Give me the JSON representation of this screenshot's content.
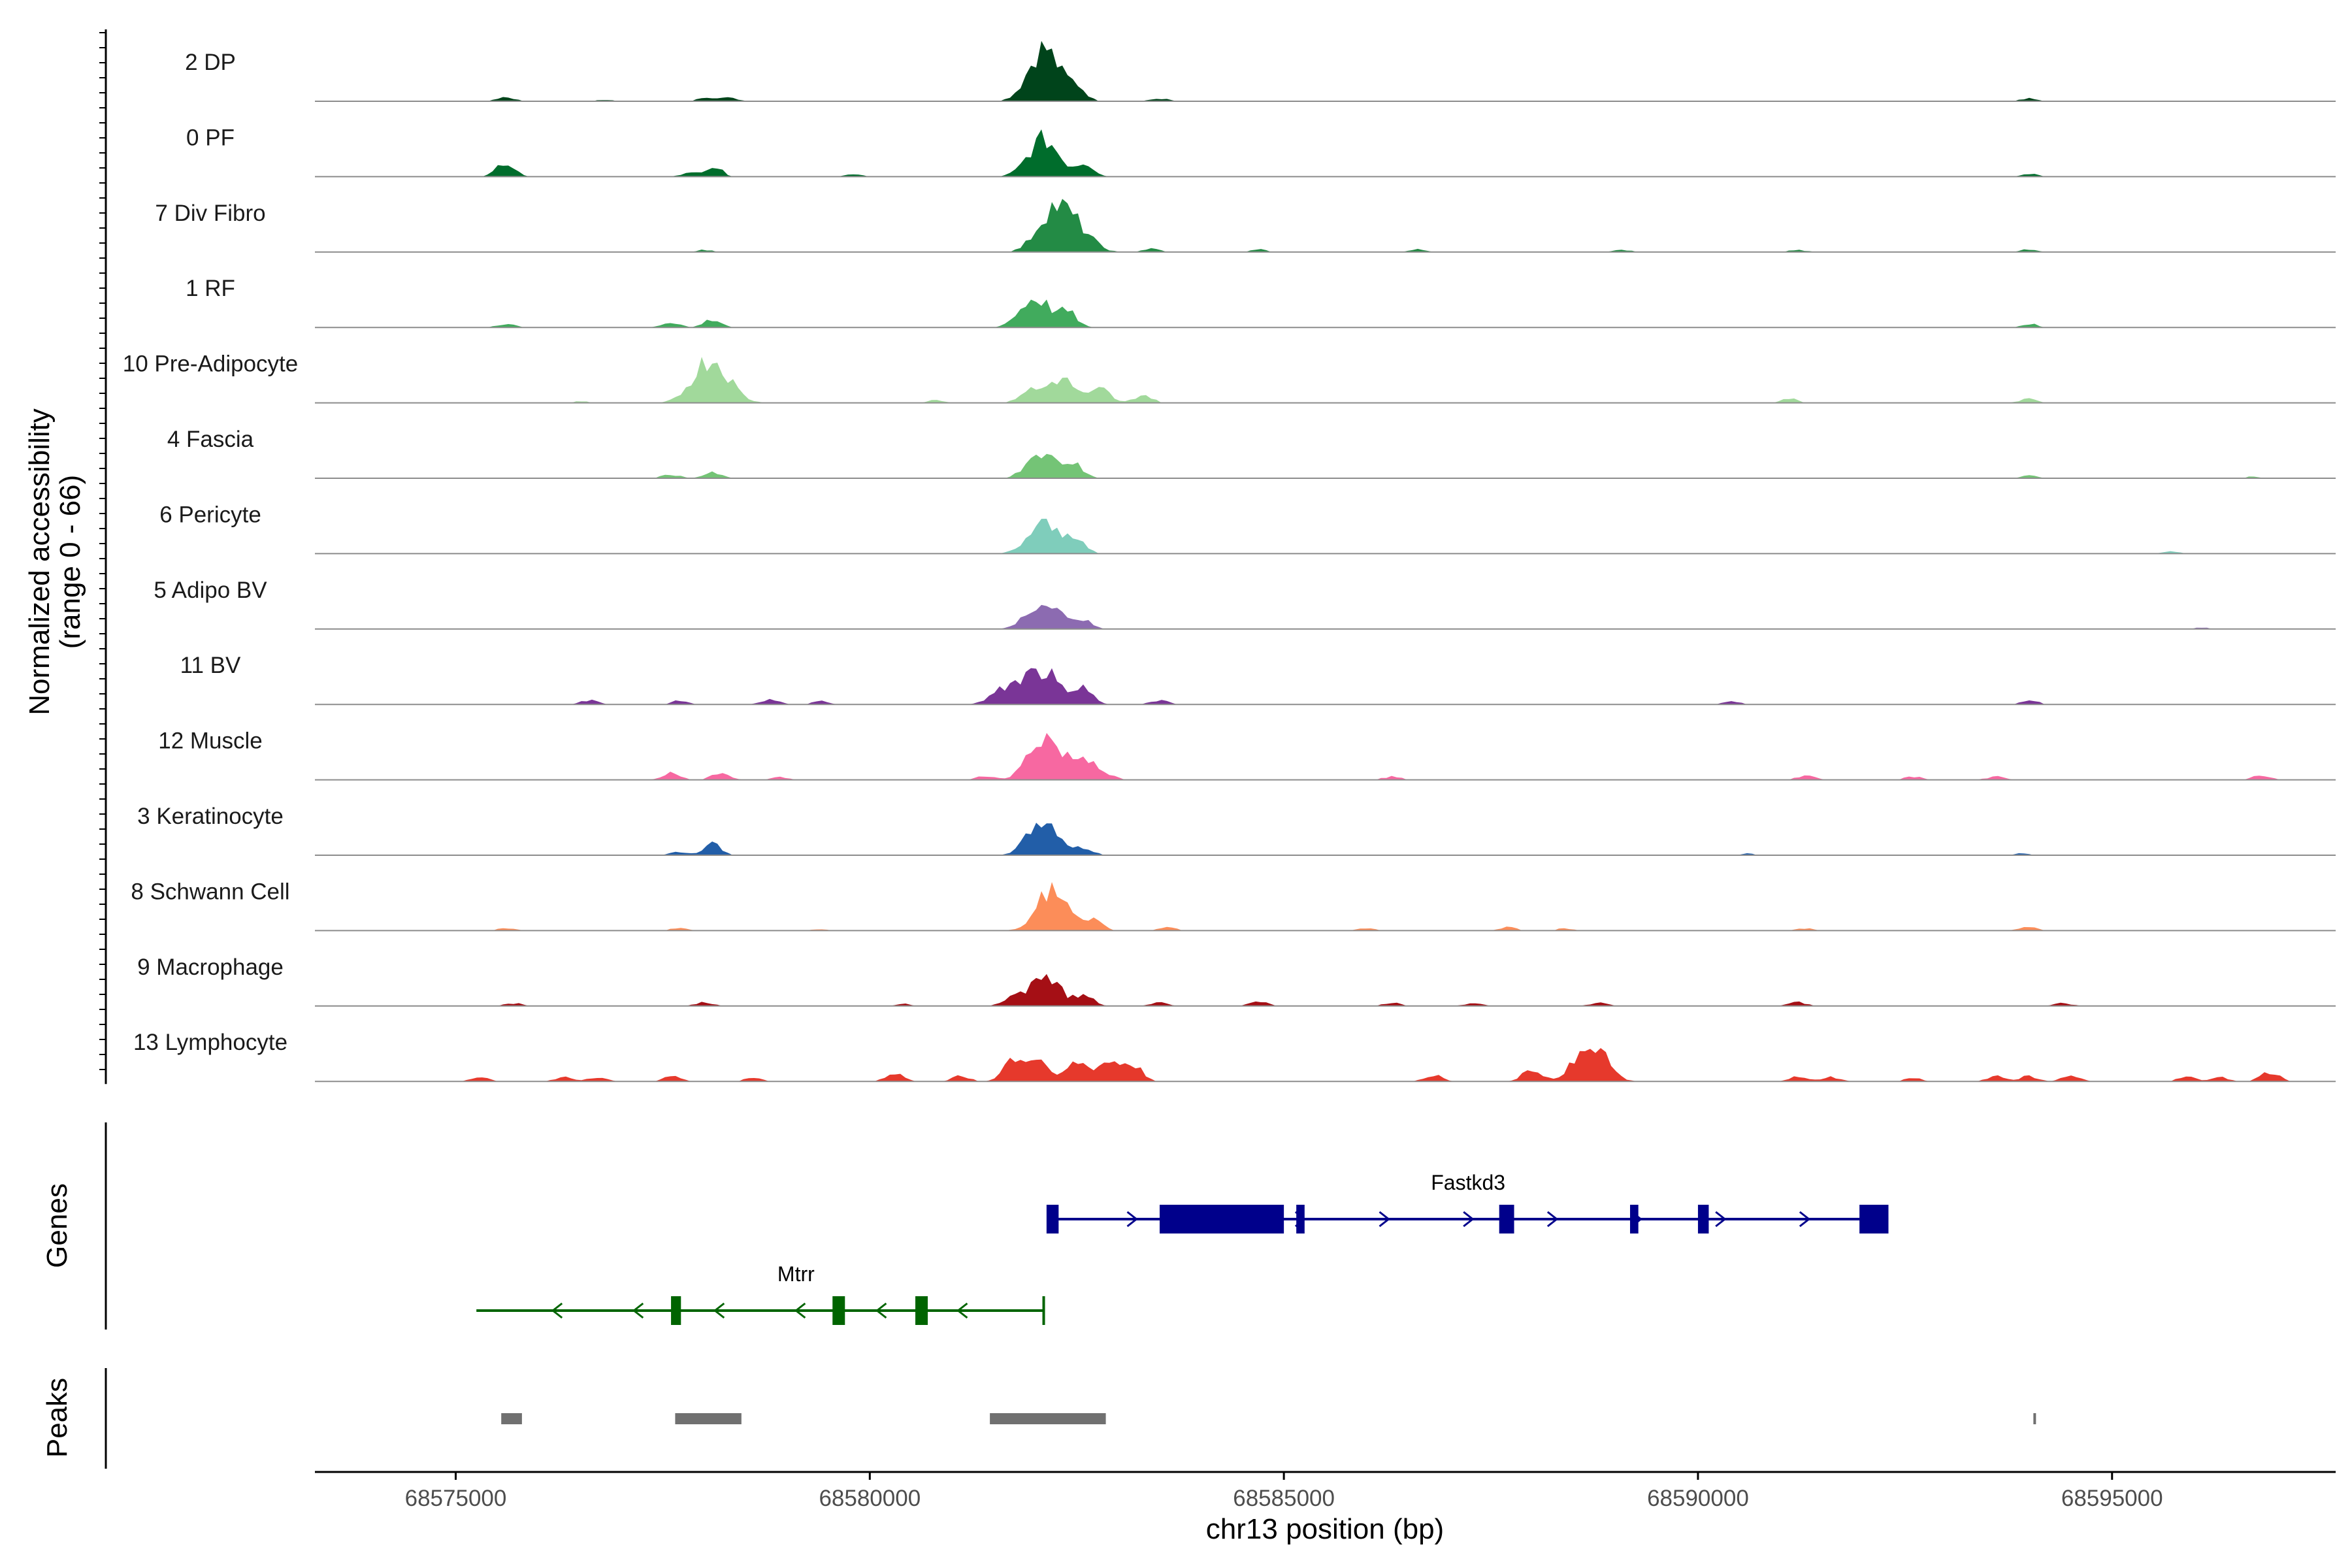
{
  "chart_data": {
    "type": "area",
    "title": "",
    "chrom": "chr13",
    "xlabel": "chr13 position (bp)",
    "ylabel": "Normalized accessibility",
    "ylabel_range": "(range 0 - 66)",
    "xlim": [
      68573300,
      68597700
    ],
    "x_ticks": [
      68575000,
      68580000,
      68585000,
      68590000,
      68595000
    ],
    "x_tick_labels": [
      "68575000",
      "68580000",
      "68585000",
      "68590000",
      "68595000"
    ],
    "y_range": [
      0,
      66
    ],
    "tracks": [
      {
        "name": "2 DP",
        "color": "#00441b",
        "peaks": [
          [
            68575600,
            0.08
          ],
          [
            68576800,
            0.03
          ],
          [
            68578000,
            0.05
          ],
          [
            68578300,
            0.07
          ],
          [
            68582100,
            1.0
          ],
          [
            68582500,
            0.25
          ],
          [
            68583500,
            0.05
          ],
          [
            68594000,
            0.06
          ]
        ]
      },
      {
        "name": "0 PF",
        "color": "#006d2c",
        "peaks": [
          [
            68575600,
            0.25
          ],
          [
            68577800,
            0.06
          ],
          [
            68578100,
            0.2
          ],
          [
            68579800,
            0.04
          ],
          [
            68582100,
            0.7
          ],
          [
            68582600,
            0.25
          ],
          [
            68594000,
            0.05
          ]
        ]
      },
      {
        "name": "7 Div Fibro",
        "color": "#238b45",
        "peaks": [
          [
            68578000,
            0.04
          ],
          [
            68582200,
            0.75
          ],
          [
            68582500,
            0.4
          ],
          [
            68583400,
            0.06
          ],
          [
            68584700,
            0.05
          ],
          [
            68586600,
            0.05
          ],
          [
            68589100,
            0.04
          ],
          [
            68591200,
            0.04
          ],
          [
            68594000,
            0.05
          ]
        ]
      },
      {
        "name": "1 RF",
        "color": "#41ab5d",
        "peaks": [
          [
            68575600,
            0.07
          ],
          [
            68577600,
            0.1
          ],
          [
            68578100,
            0.15
          ],
          [
            68582000,
            0.55
          ],
          [
            68582400,
            0.25
          ],
          [
            68594000,
            0.07
          ]
        ]
      },
      {
        "name": "10 Pre-Adipocyte",
        "color": "#a1d99b",
        "peaks": [
          [
            68576500,
            0.03
          ],
          [
            68578000,
            0.55
          ],
          [
            68578200,
            0.4
          ],
          [
            68580800,
            0.05
          ],
          [
            68581900,
            0.2
          ],
          [
            68582300,
            0.45
          ],
          [
            68582800,
            0.25
          ],
          [
            68583300,
            0.15
          ],
          [
            68591100,
            0.08
          ],
          [
            68594000,
            0.08
          ]
        ]
      },
      {
        "name": "4 Fascia",
        "color": "#74c476",
        "peaks": [
          [
            68577600,
            0.07
          ],
          [
            68578100,
            0.1
          ],
          [
            68582100,
            0.45
          ],
          [
            68582500,
            0.2
          ],
          [
            68594000,
            0.05
          ],
          [
            68596700,
            0.03
          ]
        ]
      },
      {
        "name": "6 Pericyte",
        "color": "#7fcdbb",
        "peaks": [
          [
            68582100,
            0.55
          ],
          [
            68582500,
            0.3
          ],
          [
            68595700,
            0.04
          ]
        ]
      },
      {
        "name": "5 Adipo BV",
        "color": "#8c6bb1",
        "peaks": [
          [
            68582100,
            0.55
          ],
          [
            68582600,
            0.15
          ],
          [
            68596100,
            0.03
          ]
        ]
      },
      {
        "name": "11 BV",
        "color": "#7a3597",
        "peaks": [
          [
            68576600,
            0.08
          ],
          [
            68577700,
            0.07
          ],
          [
            68578800,
            0.08
          ],
          [
            68579400,
            0.06
          ],
          [
            68581700,
            0.35
          ],
          [
            68582100,
            0.6
          ],
          [
            68582600,
            0.3
          ],
          [
            68583500,
            0.08
          ],
          [
            68590400,
            0.06
          ],
          [
            68594000,
            0.08
          ]
        ]
      },
      {
        "name": "12 Muscle",
        "color": "#f768a1",
        "peaks": [
          [
            68577600,
            0.12
          ],
          [
            68578200,
            0.15
          ],
          [
            68578900,
            0.05
          ],
          [
            68581400,
            0.07
          ],
          [
            68582100,
            0.8
          ],
          [
            68582600,
            0.4
          ],
          [
            68586300,
            0.06
          ],
          [
            68591300,
            0.08
          ],
          [
            68592600,
            0.06
          ],
          [
            68593600,
            0.06
          ],
          [
            68596800,
            0.08
          ]
        ]
      },
      {
        "name": "3 Keratinocyte",
        "color": "#225ea8",
        "peaks": [
          [
            68577700,
            0.06
          ],
          [
            68578100,
            0.22
          ],
          [
            68582100,
            0.65
          ],
          [
            68582600,
            0.12
          ],
          [
            68590600,
            0.03
          ],
          [
            68593900,
            0.03
          ]
        ]
      },
      {
        "name": "8 Schwann Cell",
        "color": "#fc8d59",
        "peaks": [
          [
            68575600,
            0.05
          ],
          [
            68577700,
            0.05
          ],
          [
            68579400,
            0.03
          ],
          [
            68582200,
            0.75
          ],
          [
            68582700,
            0.18
          ],
          [
            68583600,
            0.07
          ],
          [
            68586000,
            0.04
          ],
          [
            68587700,
            0.06
          ],
          [
            68588400,
            0.04
          ],
          [
            68591300,
            0.04
          ],
          [
            68594000,
            0.07
          ]
        ]
      },
      {
        "name": "9 Macrophage",
        "color": "#a50f15",
        "peaks": [
          [
            68575700,
            0.05
          ],
          [
            68578000,
            0.07
          ],
          [
            68580400,
            0.04
          ],
          [
            68581700,
            0.12
          ],
          [
            68582100,
            0.6
          ],
          [
            68582600,
            0.2
          ],
          [
            68583500,
            0.06
          ],
          [
            68584700,
            0.08
          ],
          [
            68586300,
            0.06
          ],
          [
            68587300,
            0.06
          ],
          [
            68588800,
            0.06
          ],
          [
            68591200,
            0.07
          ],
          [
            68594400,
            0.05
          ]
        ]
      },
      {
        "name": "13 Lymphocyte",
        "color": "#e6392c",
        "peaks": [
          [
            68575300,
            0.08
          ],
          [
            68576300,
            0.08
          ],
          [
            68576700,
            0.08
          ],
          [
            68577600,
            0.1
          ],
          [
            68578600,
            0.07
          ],
          [
            68580300,
            0.15
          ],
          [
            68581100,
            0.1
          ],
          [
            68581700,
            0.3
          ],
          [
            68582000,
            0.4
          ],
          [
            68582500,
            0.3
          ],
          [
            68582900,
            0.35
          ],
          [
            68583200,
            0.2
          ],
          [
            68586800,
            0.12
          ],
          [
            68588000,
            0.25
          ],
          [
            68588700,
            0.75
          ],
          [
            68591200,
            0.08
          ],
          [
            68591600,
            0.08
          ],
          [
            68592600,
            0.06
          ],
          [
            68593600,
            0.1
          ],
          [
            68594000,
            0.1
          ],
          [
            68594500,
            0.1
          ],
          [
            68595900,
            0.1
          ],
          [
            68596300,
            0.08
          ],
          [
            68596900,
            0.18
          ]
        ]
      }
    ],
    "genes_track_label": "Genes",
    "genes": [
      {
        "name": "Fastkd3",
        "strand": "+",
        "start": 68582150,
        "end": 68592300,
        "color": "#00008b",
        "exons": [
          [
            68582150,
            68582280
          ],
          [
            68583500,
            68585000
          ],
          [
            68585150,
            68585250
          ],
          [
            68587600,
            68587780
          ],
          [
            68589180,
            68589280
          ],
          [
            68590000,
            68590130
          ],
          [
            68591950,
            68592300
          ]
        ]
      },
      {
        "name": "Mtrr",
        "strand": "-",
        "start": 68575250,
        "end": 68582100,
        "color": "#006400",
        "exons": [
          [
            68577600,
            68577720
          ],
          [
            68579550,
            68579700
          ],
          [
            68580550,
            68580700
          ]
        ]
      }
    ],
    "peaks_track_label": "Peaks",
    "peaks_color": "#707070",
    "peak_regions": [
      [
        68575550,
        68575800
      ],
      [
        68577650,
        68578450
      ],
      [
        68581450,
        68582850
      ],
      [
        68594050,
        68594080
      ]
    ]
  }
}
